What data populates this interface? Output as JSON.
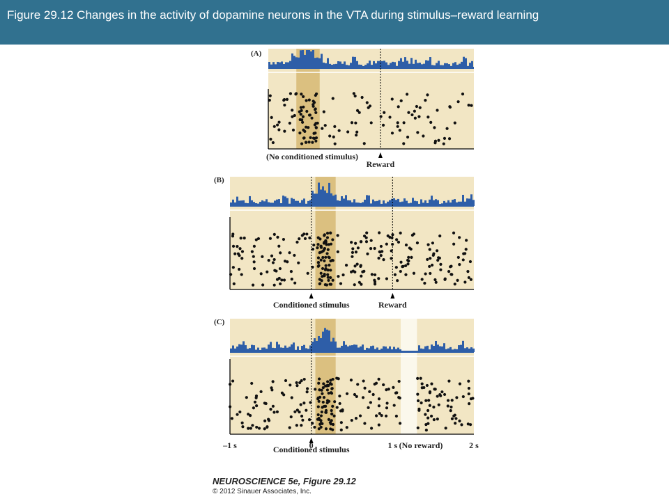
{
  "title": "Figure 29.12  Changes in the activity of dopamine neurons in the VTA during stimulus–reward learning",
  "colors": {
    "title_bar": "#31718f",
    "panel_background": "#f2e6c4",
    "response_window": "#d7b874",
    "histogram": "#2e5ea8",
    "spike": "#111111",
    "no_reward_window": "#fbf8ec"
  },
  "panels": [
    {
      "id": "A",
      "label": "(A)",
      "left_annotation": "(No conditioned stimulus)",
      "markers": [
        {
          "label": "Reward",
          "time": 1
        }
      ],
      "response_window": [
        0.1,
        0.35
      ],
      "peak_time": 0.2
    },
    {
      "id": "B",
      "label": "(B)",
      "markers": [
        {
          "label": "Conditioned stimulus",
          "time": 0
        },
        {
          "label": "Reward",
          "time": 1
        }
      ],
      "response_window": [
        0.05,
        0.3
      ],
      "peak_time": 0.15
    },
    {
      "id": "C",
      "label": "(C)",
      "markers": [
        {
          "label": "Conditioned stimulus",
          "time": 0
        }
      ],
      "response_window": [
        0.05,
        0.3
      ],
      "peak_time": 0.15,
      "no_reward_window": [
        1.1,
        1.3
      ],
      "axis": {
        "tick_labels": [
          "–1 s",
          "0",
          "1 s",
          "(No reward)",
          "2 s"
        ]
      }
    }
  ],
  "credit": {
    "title": "NEUROSCIENCE 5e, Figure 29.12",
    "copyright": "© 2012 Sinauer Associates, Inc."
  }
}
